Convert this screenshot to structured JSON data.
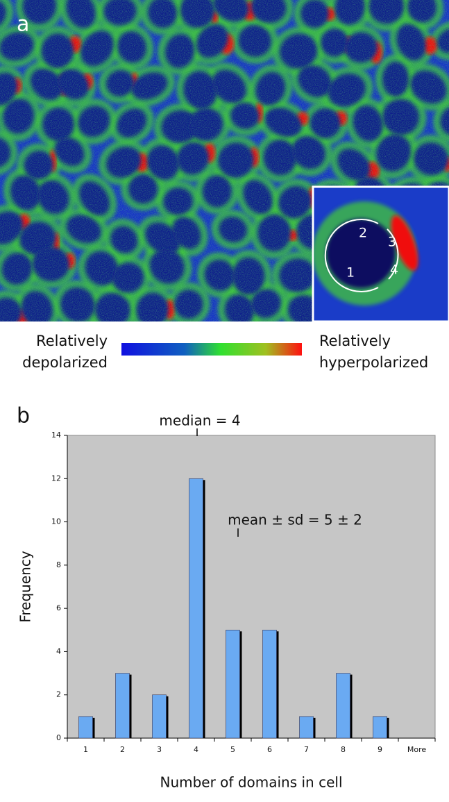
{
  "panel_a": {
    "label": "a",
    "inset_labels": [
      "1",
      "2",
      "3",
      "4"
    ],
    "colorbar": {
      "left_label": [
        "Relatively",
        "depolarized"
      ],
      "right_label": [
        "Relatively",
        "hyperpolarized"
      ]
    }
  },
  "chart_data": {
    "type": "bar",
    "panel_label": "b",
    "x_label": "Number of domains in cell",
    "y_label": "Frequency",
    "categories": [
      "1",
      "2",
      "3",
      "4",
      "5",
      "6",
      "7",
      "8",
      "9",
      "More"
    ],
    "values": [
      1,
      3,
      2,
      12,
      5,
      5,
      1,
      3,
      1,
      0
    ],
    "color": "#6aaaf2",
    "ylim": [
      0,
      14
    ],
    "yticks": [
      0,
      2,
      4,
      6,
      8,
      10,
      12,
      14
    ],
    "annotations": [
      {
        "text": "median = 4"
      },
      {
        "text": "mean  ± sd = 5 ± 2"
      }
    ]
  }
}
